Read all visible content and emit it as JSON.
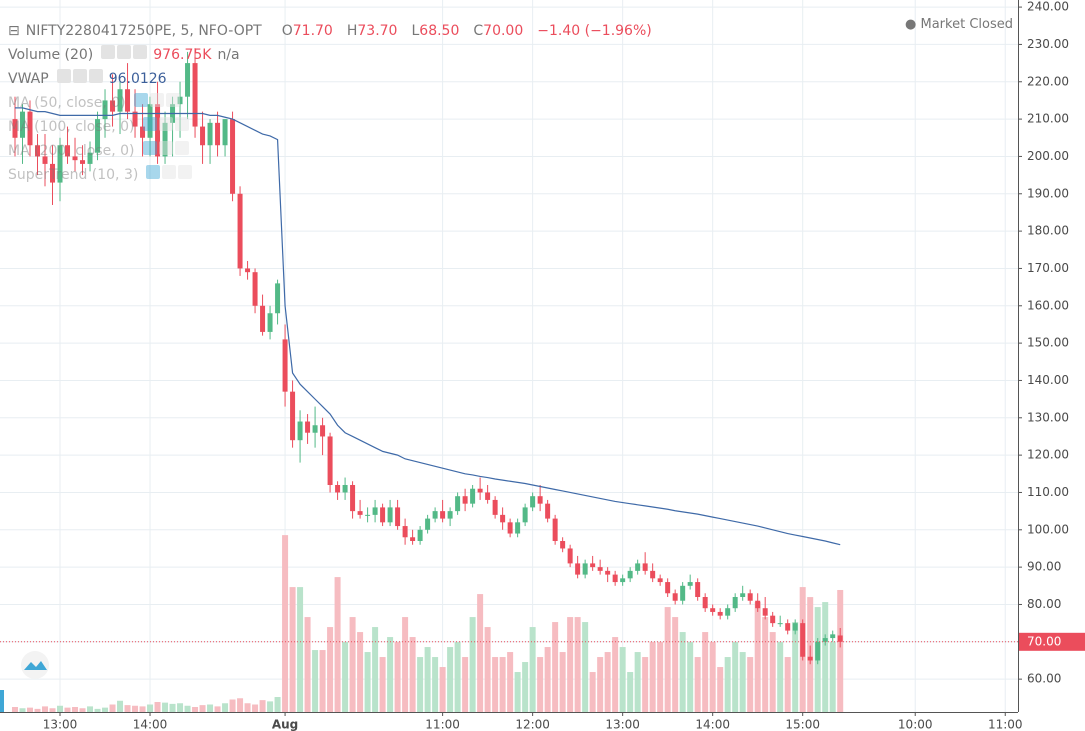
{
  "chart_data": {
    "type": "candlestick",
    "title": "NIFTY2280417250PE, 5, NFO-OPT",
    "quote": [
      {
        "label": "O",
        "value": "71.70"
      },
      {
        "label": "H",
        "value": "73.70"
      },
      {
        "label": "L",
        "value": "68.50"
      },
      {
        "label": "C",
        "value": "70.00"
      }
    ],
    "change": "−1.40 (−1.96%)",
    "status": "Market Closed",
    "indicators": [
      {
        "name": "Volume (20)",
        "values": [
          "976.75K",
          "n/a"
        ]
      },
      {
        "name": "VWAP",
        "values": [
          "96.0126"
        ]
      },
      {
        "name": "MA (50, close, 0)"
      },
      {
        "name": "MA (100, close, 0)"
      },
      {
        "name": "MA (200, close, 0)"
      },
      {
        "name": "SuperTrend (10, 3)"
      }
    ],
    "x": [
      0,
      1,
      2,
      3,
      4,
      5,
      6,
      7,
      8,
      9,
      10,
      11,
      12,
      13,
      14,
      15,
      16,
      17,
      18,
      19,
      20,
      21,
      22,
      23,
      24,
      25,
      26,
      27,
      28,
      29,
      30,
      31,
      32,
      33,
      34,
      35,
      36,
      37,
      38,
      39,
      40,
      41,
      42,
      43,
      44,
      45,
      46,
      47,
      48,
      49,
      50,
      51,
      52,
      53,
      54,
      55,
      56,
      57,
      58,
      59,
      60,
      61,
      62,
      63,
      64,
      65,
      66,
      67,
      68,
      69,
      70,
      71,
      72,
      73,
      74,
      75,
      76,
      77,
      78,
      79,
      80,
      81,
      82,
      83,
      84,
      85,
      86,
      87,
      88,
      89,
      90,
      91,
      92,
      93,
      94,
      95,
      96,
      97,
      98,
      99,
      100,
      101,
      102,
      103,
      104,
      105,
      106,
      107,
      108,
      109,
      110
    ],
    "open": [
      210,
      205,
      212,
      203,
      200,
      198,
      193,
      203,
      200,
      199,
      198,
      201,
      210,
      215,
      212,
      218,
      212,
      208,
      205,
      214,
      200,
      209,
      214,
      216,
      225,
      208,
      203,
      209,
      203,
      210,
      190,
      170,
      169,
      160,
      153,
      158,
      151,
      137,
      124,
      129,
      126,
      128,
      125,
      112,
      110,
      112,
      105,
      104,
      104,
      106,
      102,
      106,
      101,
      98,
      97,
      100,
      103,
      105,
      103,
      105,
      109,
      107,
      111,
      110,
      108,
      104,
      102,
      99,
      102,
      106,
      109,
      107,
      103,
      97,
      95,
      91,
      88,
      91,
      90,
      89,
      88,
      86,
      87,
      89,
      91,
      89,
      87,
      86,
      83,
      81,
      85,
      86,
      82,
      79,
      78,
      77,
      79,
      82,
      83,
      81,
      79,
      77,
      75,
      75,
      73,
      75,
      66,
      65,
      70,
      71,
      71.7
    ],
    "high": [
      216,
      214,
      215,
      206,
      206,
      203,
      205,
      208,
      205,
      203,
      204,
      212,
      218,
      222,
      220,
      225,
      218,
      214,
      216,
      220,
      212,
      216,
      220,
      228,
      229,
      212,
      210,
      212,
      210,
      212,
      192,
      172,
      170,
      163,
      160,
      167,
      155,
      140,
      132,
      131,
      133,
      130,
      126,
      113,
      114,
      113,
      108,
      106,
      108,
      107,
      108,
      108,
      103,
      100,
      101,
      104,
      106,
      108,
      106,
      110,
      111,
      112,
      114,
      112,
      109,
      106,
      103,
      103,
      107,
      110,
      112,
      108,
      104,
      98,
      96,
      93,
      92,
      93,
      92,
      90,
      89,
      88,
      90,
      92,
      94,
      91,
      88,
      87,
      84,
      86,
      88,
      87,
      83,
      80,
      79,
      80,
      83,
      85,
      84,
      83,
      82,
      78,
      77,
      76,
      76,
      76,
      69,
      71,
      72,
      73,
      73.7
    ],
    "low": [
      200,
      198,
      200,
      195,
      192,
      187,
      188,
      198,
      196,
      195,
      196,
      199,
      205,
      208,
      206,
      210,
      205,
      200,
      200,
      198,
      198,
      200,
      205,
      210,
      205,
      198,
      198,
      200,
      200,
      188,
      168,
      167,
      158,
      152,
      151,
      155,
      133,
      122,
      118,
      123,
      122,
      120,
      110,
      108,
      108,
      103,
      103,
      102,
      102,
      101,
      101,
      100,
      96,
      96,
      96,
      99,
      102,
      102,
      101,
      104,
      105,
      106,
      108,
      107,
      103,
      100,
      98,
      98,
      101,
      105,
      105,
      102,
      96,
      94,
      90,
      87,
      87,
      89,
      88,
      86,
      85,
      85,
      86,
      88,
      88,
      86,
      85,
      82,
      80,
      80,
      84,
      81,
      78,
      77,
      76,
      76,
      78,
      81,
      80,
      78,
      76,
      74,
      74,
      72,
      72,
      65,
      64,
      64,
      69,
      70,
      68.5
    ],
    "close": [
      205,
      212,
      203,
      200,
      198,
      193,
      203,
      200,
      199,
      198,
      201,
      210,
      215,
      212,
      218,
      212,
      208,
      205,
      214,
      200,
      209,
      214,
      216,
      225,
      208,
      203,
      209,
      203,
      210,
      190,
      170,
      169,
      160,
      153,
      158,
      166,
      137,
      124,
      129,
      126,
      128,
      125,
      112,
      110,
      112,
      105,
      104,
      104,
      106,
      102,
      106,
      101,
      98,
      97,
      100,
      103,
      105,
      103,
      105,
      109,
      107,
      111,
      110,
      108,
      104,
      102,
      99,
      102,
      106,
      109,
      107,
      103,
      97,
      95,
      91,
      88,
      91,
      90,
      89,
      88,
      86,
      87,
      89,
      91,
      89,
      87,
      86,
      83,
      81,
      85,
      86,
      82,
      79,
      78,
      77,
      79,
      82,
      83,
      81,
      79,
      77,
      75,
      75,
      73,
      75,
      66,
      65,
      70,
      71,
      72,
      70
    ],
    "volume": [
      40,
      30,
      35,
      25,
      45,
      30,
      50,
      35,
      40,
      30,
      45,
      25,
      35,
      60,
      90,
      55,
      50,
      45,
      60,
      80,
      75,
      65,
      70,
      50,
      40,
      55,
      60,
      45,
      70,
      100,
      110,
      70,
      60,
      95,
      85,
      120,
      1416,
      1000,
      1000,
      760,
      496,
      496,
      680,
      1080,
      560,
      760,
      640,
      480,
      680,
      440,
      600,
      560,
      760,
      600,
      440,
      520,
      440,
      360,
      520,
      560,
      440,
      760,
      944,
      680,
      440,
      440,
      480,
      320,
      400,
      680,
      440,
      520,
      720,
      480,
      760,
      760,
      720,
      320,
      440,
      480,
      600,
      520,
      320,
      480,
      440,
      560,
      560,
      840,
      760,
      640,
      560,
      440,
      640,
      560,
      360,
      440,
      560,
      480,
      440,
      880,
      760,
      640,
      560,
      440,
      720,
      1000,
      920,
      840,
      880,
      560,
      976.75
    ],
    "vwap": [
      213,
      213,
      212.5,
      212,
      212,
      211.5,
      211,
      211,
      211,
      211,
      211,
      211,
      211,
      211,
      211.5,
      211.5,
      211.5,
      211.5,
      211.5,
      211.5,
      211.5,
      211.5,
      211.5,
      211.5,
      211.5,
      211.5,
      211,
      211,
      210.5,
      210,
      209,
      208,
      207,
      206,
      205.5,
      204.5,
      160,
      142,
      139,
      137,
      135,
      133,
      131,
      128,
      126,
      125,
      124,
      123,
      122,
      121,
      120.5,
      120,
      119,
      118.5,
      118,
      117.5,
      117,
      116.5,
      116,
      115.5,
      115,
      114.7,
      114.3,
      114,
      113.6,
      113.3,
      113,
      112.7,
      112.4,
      112,
      111.6,
      111.2,
      110.8,
      110.4,
      110,
      109.6,
      109.2,
      108.8,
      108.4,
      108,
      107.6,
      107.3,
      107,
      106.7,
      106.4,
      106.1,
      105.8,
      105.5,
      105.1,
      104.8,
      104.5,
      104.2,
      103.8,
      103.4,
      103,
      102.6,
      102.2,
      101.8,
      101.4,
      101,
      100.5,
      100,
      99.5,
      99,
      98.6,
      98.2,
      97.8,
      97.4,
      97,
      96.5,
      96.0126
    ],
    "xlim": [
      -2,
      133.7
    ],
    "xticks": [
      {
        "value": 6,
        "label": "13:00"
      },
      {
        "value": 18,
        "label": "14:00"
      },
      {
        "value": 36,
        "label": "Aug"
      },
      {
        "value": 57,
        "label": "11:00"
      },
      {
        "value": 69,
        "label": "12:00"
      },
      {
        "value": 81,
        "label": "13:00"
      },
      {
        "value": 93,
        "label": "14:00"
      },
      {
        "value": 105,
        "label": "15:00"
      },
      {
        "value": 120,
        "label": "10:00"
      },
      {
        "value": 132,
        "label": "11:00"
      }
    ],
    "ylim": [
      51.2,
      241.9
    ],
    "yticks": [
      {
        "value": 60,
        "label": "60.00"
      },
      {
        "value": 70,
        "label": "70.00"
      },
      {
        "value": 80,
        "label": "80.00"
      },
      {
        "value": 90,
        "label": "90.00"
      },
      {
        "value": 100,
        "label": "100.00"
      },
      {
        "value": 110,
        "label": "110.00"
      },
      {
        "value": 120,
        "label": "120.00"
      },
      {
        "value": 130,
        "label": "130.00"
      },
      {
        "value": 140,
        "label": "140.00"
      },
      {
        "value": 150,
        "label": "150.00"
      },
      {
        "value": 160,
        "label": "160.00"
      },
      {
        "value": 170,
        "label": "170.00"
      },
      {
        "value": 180,
        "label": "180.00"
      },
      {
        "value": 190,
        "label": "190.00"
      },
      {
        "value": 200,
        "label": "200.00"
      },
      {
        "value": 210,
        "label": "210.00"
      },
      {
        "value": 220,
        "label": "220.00"
      },
      {
        "value": 230,
        "label": "230.00"
      },
      {
        "value": 240,
        "label": "240.00"
      }
    ],
    "volume_lim": [
      0,
      5700
    ],
    "last_price": {
      "value": 70,
      "label": "70.00"
    },
    "grid": true,
    "up_color": "#53b987",
    "down_color": "#eb4d5c",
    "volume_up_color": "#b9e3cb",
    "volume_down_color": "#f6bcc1",
    "vwap_color": "#3f6aa8"
  }
}
